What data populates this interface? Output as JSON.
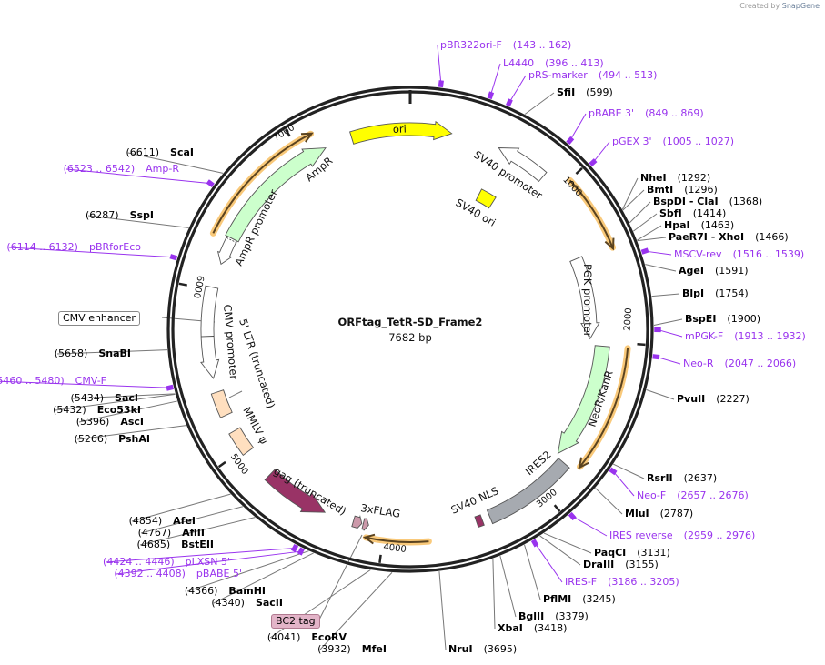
{
  "watermark": {
    "prefix": "Created by",
    "brand": "SnapGene"
  },
  "plasmid": {
    "name": "ORFtag_TetR-SD_Frame2",
    "length_label": "7682 bp",
    "length": 7682
  },
  "ticks": [
    "1000",
    "2000",
    "3000",
    "4000",
    "5000",
    "6000",
    "7000"
  ],
  "sites": [
    {
      "name": "SfiI",
      "pos": 599
    },
    {
      "name": "NheI",
      "pos": 1292
    },
    {
      "name": "BmtI",
      "pos": 1296
    },
    {
      "name": "BspDI  - ClaI",
      "pos": 1368
    },
    {
      "name": "SbfI",
      "pos": 1414
    },
    {
      "name": "HpaI",
      "pos": 1463
    },
    {
      "name": "PaeR7I  - XhoI",
      "pos": 1466
    },
    {
      "name": "AgeI",
      "pos": 1591
    },
    {
      "name": "BlpI",
      "pos": 1754
    },
    {
      "name": "BspEI",
      "pos": 1900
    },
    {
      "name": "PvuII",
      "pos": 2227
    },
    {
      "name": "RsrII",
      "pos": 2637
    },
    {
      "name": "MluI",
      "pos": 2787
    },
    {
      "name": "PaqCI",
      "pos": 3131
    },
    {
      "name": "DraIII",
      "pos": 3155
    },
    {
      "name": "PflMI",
      "pos": 3245
    },
    {
      "name": "BglII",
      "pos": 3379
    },
    {
      "name": "XbaI",
      "pos": 3418
    },
    {
      "name": "NruI",
      "pos": 3695
    },
    {
      "name": "MfeI",
      "pos": 3932
    },
    {
      "name": "EcoRV",
      "pos": 4041
    },
    {
      "name": "SacII",
      "pos": 4340
    },
    {
      "name": "BamHI",
      "pos": 4366
    },
    {
      "name": "BstEII",
      "pos": 4685
    },
    {
      "name": "AflII",
      "pos": 4767
    },
    {
      "name": "AfeI",
      "pos": 4854
    },
    {
      "name": "PshAI",
      "pos": 5266
    },
    {
      "name": "AscI",
      "pos": 5396
    },
    {
      "name": "Eco53kI",
      "pos": 5432
    },
    {
      "name": "SacI",
      "pos": 5434
    },
    {
      "name": "SnaBI",
      "pos": 5658
    },
    {
      "name": "SspI",
      "pos": 6287
    },
    {
      "name": "ScaI",
      "pos": 6611
    }
  ],
  "primers": [
    {
      "name": "pBR322ori-F",
      "start": 143,
      "end": 162
    },
    {
      "name": "L4440",
      "start": 396,
      "end": 413
    },
    {
      "name": "pRS-marker",
      "start": 494,
      "end": 513
    },
    {
      "name": "pBABE 3'",
      "start": 849,
      "end": 869
    },
    {
      "name": "pGEX 3'",
      "start": 1005,
      "end": 1027
    },
    {
      "name": "MSCV-rev",
      "start": 1516,
      "end": 1539
    },
    {
      "name": "mPGK-F",
      "start": 1913,
      "end": 1932
    },
    {
      "name": "Neo-R",
      "start": 2047,
      "end": 2066
    },
    {
      "name": "Neo-F",
      "start": 2657,
      "end": 2676
    },
    {
      "name": "IRES reverse",
      "start": 2959,
      "end": 2976
    },
    {
      "name": "IRES-F",
      "start": 3186,
      "end": 3205
    },
    {
      "name": "pBABE 5'",
      "start": 4392,
      "end": 4408
    },
    {
      "name": "pLXSN 5'",
      "start": 4424,
      "end": 4446
    },
    {
      "name": "CMV-F",
      "start": 5460,
      "end": 5480
    },
    {
      "name": "pBRforEco",
      "start": 6114,
      "end": 6132
    },
    {
      "name": "Amp-R",
      "start": 6523,
      "end": 6542
    }
  ],
  "features": {
    "ori": "ori",
    "sv40_promoter": "SV40 promoter",
    "sv40_ori": "SV40 ori",
    "pgk_promoter": "PGK promoter",
    "neor": "NeoR/KanR",
    "ires2": "IRES2",
    "sv40_nls": "SV40 NLS",
    "flag": "3xFLAG",
    "gag": "gag (truncated)",
    "mmlv": "MMLV ψ",
    "ltr": "5' LTR (truncated)",
    "cmv_promoter": "CMV promoter",
    "ampr_promoter": "AmpR promoter",
    "ampr": "AmpR",
    "cmv_enhancer": "CMV enhancer",
    "bc2_tag": "BC2 tag"
  },
  "colors": {
    "primer": "#9933ee",
    "ori": "#ffff00",
    "resistance": "#ccffcc",
    "gag": "#993366",
    "ires": "#a6aab0",
    "ltr": "#ffdfbf",
    "flag": "#cc99aa",
    "orf": "#f9c97a"
  }
}
